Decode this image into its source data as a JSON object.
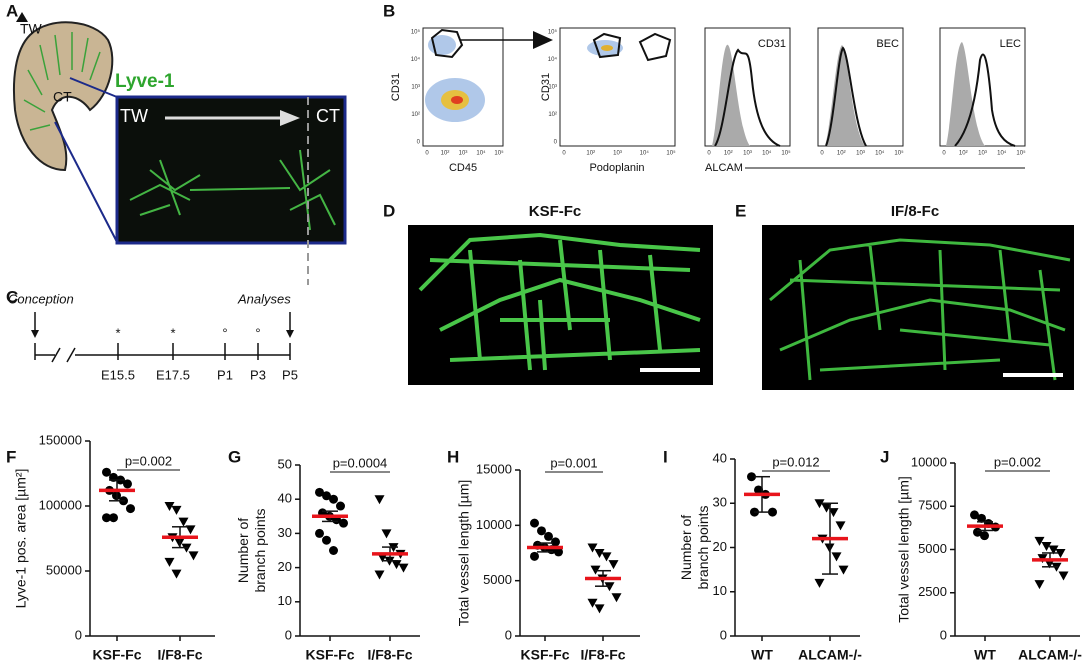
{
  "panel_labels": [
    "A",
    "B",
    "C",
    "D",
    "E",
    "F",
    "G",
    "H",
    "I",
    "J"
  ],
  "panel_a": {
    "tongue_top": "TW",
    "tongue_bottom": "CT",
    "stain": "Lyve-1",
    "inset_left": "TW",
    "inset_right": "CT"
  },
  "panel_b": {
    "y_label": "CD31",
    "x_labels": [
      "CD45",
      "Podoplanin",
      "ALCAM"
    ],
    "histogram_labels": [
      "CD31",
      "BEC",
      "LEC"
    ],
    "log_ticks": [
      "0",
      "10²",
      "10³",
      "10⁴",
      "10⁵"
    ]
  },
  "panel_c": {
    "start": "Conception",
    "end": "Analyses",
    "timepoints": [
      "E15.5",
      "E17.5",
      "P1",
      "P3",
      "P5"
    ],
    "symbols": [
      "*",
      "*",
      "°",
      "°"
    ]
  },
  "panel_d": {
    "title": "KSF-Fc"
  },
  "panel_e": {
    "title": "IF/8-Fc"
  },
  "chart_data": [
    {
      "type": "dotplot",
      "ylabel": [
        "Lyve-1 pos. area [µm²]"
      ],
      "categories": [
        "KSF-Fc",
        "I/F8-Fc"
      ],
      "annotation": "p=0.002",
      "ylim": [
        0,
        150000
      ],
      "yticks": [
        0,
        50000,
        100000,
        150000
      ],
      "color": "#000000",
      "mean_color": "#e8141b",
      "groups": [
        {
          "marker": "circle",
          "mean": 112000,
          "error": 8000,
          "values": [
            126000,
            122000,
            120000,
            117000,
            112000,
            108000,
            104000,
            98000,
            91000,
            91000
          ]
        },
        {
          "marker": "triangle-down",
          "mean": 76000,
          "error": 8000,
          "values": [
            100000,
            97000,
            88000,
            82000,
            76000,
            72000,
            68000,
            62000,
            57000,
            48000
          ]
        }
      ]
    },
    {
      "type": "dotplot",
      "ylabel": [
        "Number of",
        "branch points"
      ],
      "categories": [
        "KSF-Fc",
        "I/F8-Fc"
      ],
      "annotation": "p=0.0004",
      "ylim": [
        0,
        50
      ],
      "yticks": [
        0,
        10,
        20,
        30,
        40,
        50
      ],
      "color": "#000000",
      "mean_color": "#e8141b",
      "groups": [
        {
          "marker": "circle",
          "mean": 35,
          "error": 1.5,
          "values": [
            42,
            41,
            40,
            38,
            36,
            35,
            34,
            33,
            30,
            28,
            25
          ]
        },
        {
          "marker": "triangle-down",
          "mean": 24,
          "error": 2,
          "values": [
            40,
            30,
            26,
            24,
            23,
            22,
            21,
            20,
            18
          ]
        }
      ]
    },
    {
      "type": "dotplot",
      "ylabel": [
        "Total vessel length [µm]"
      ],
      "categories": [
        "KSF-Fc",
        "I/F8-Fc"
      ],
      "annotation": "p=0.001",
      "ylim": [
        0,
        15000
      ],
      "yticks": [
        0,
        5000,
        10000,
        15000
      ],
      "color": "#000000",
      "mean_color": "#e8141b",
      "groups": [
        {
          "marker": "circle",
          "mean": 8000,
          "error": 400,
          "values": [
            10200,
            9500,
            9000,
            8500,
            8200,
            8000,
            7800,
            7600,
            7200
          ]
        },
        {
          "marker": "triangle-down",
          "mean": 5200,
          "error": 700,
          "values": [
            8000,
            7500,
            7200,
            6500,
            6000,
            5200,
            4500,
            3500,
            3000,
            2500
          ]
        }
      ]
    },
    {
      "type": "dotplot",
      "ylabel": [
        "Number of",
        "branch points"
      ],
      "categories": [
        "WT",
        "ALCAM-/-"
      ],
      "annotation": "p=0.012",
      "ylim": [
        0,
        40
      ],
      "yticks": [
        0,
        10,
        20,
        30,
        40
      ],
      "color": "#000000",
      "mean_color": "#e8141b",
      "groups": [
        {
          "marker": "circle",
          "mean": 32,
          "error": 4,
          "values": [
            36,
            33,
            32,
            28,
            28
          ]
        },
        {
          "marker": "triangle-down",
          "mean": 22,
          "error": 8,
          "values": [
            30,
            29,
            28,
            25,
            22,
            20,
            18,
            15,
            12
          ]
        }
      ]
    },
    {
      "type": "dotplot",
      "ylabel": [
        "Total vessel length [µm]"
      ],
      "categories": [
        "WT",
        "ALCAM-/-"
      ],
      "annotation": "p=0.002",
      "ylim": [
        0,
        10000
      ],
      "yticks": [
        0,
        2500,
        5000,
        7500,
        10000
      ],
      "color": "#000000",
      "mean_color": "#e8141b",
      "groups": [
        {
          "marker": "circle",
          "mean": 6350,
          "error": 250,
          "values": [
            7000,
            6800,
            6500,
            6300,
            6000,
            5800
          ]
        },
        {
          "marker": "triangle-down",
          "mean": 4400,
          "error": 400,
          "values": [
            5500,
            5200,
            5000,
            4800,
            4500,
            4200,
            4000,
            3500,
            3000
          ]
        }
      ]
    }
  ]
}
